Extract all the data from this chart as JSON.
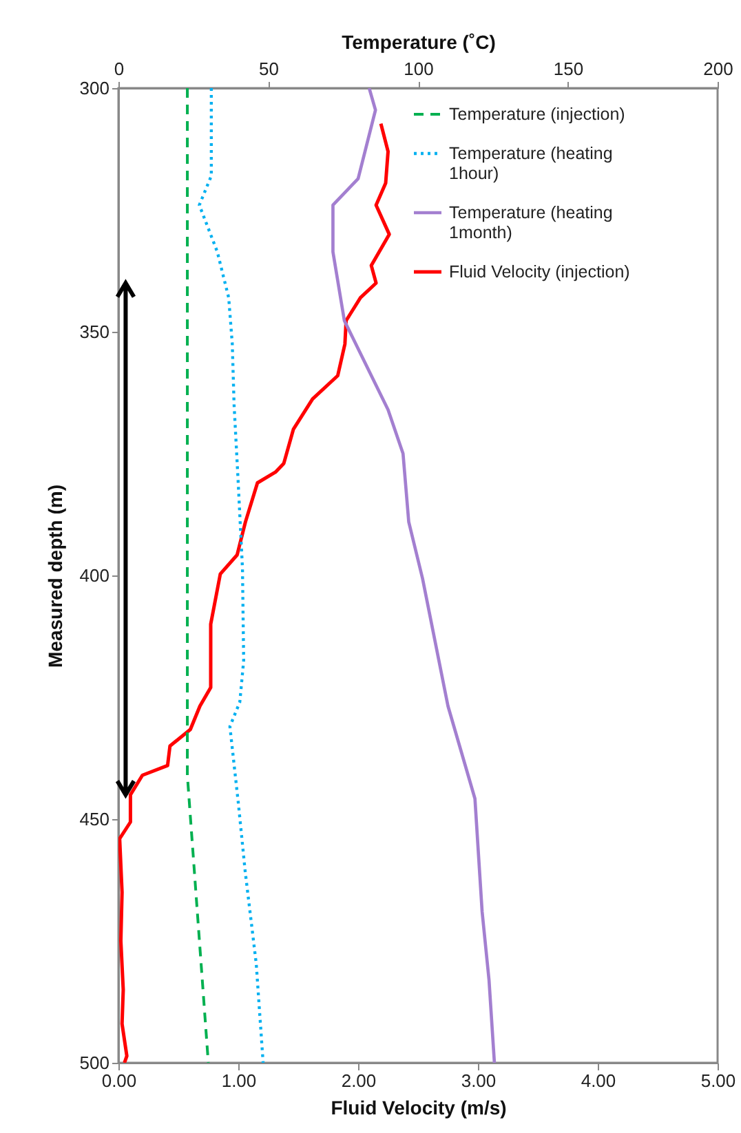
{
  "chart_data": {
    "type": "line",
    "xlabel": "Fluid Velocity (m/s)",
    "x2label": "Temperature (˚C)",
    "ylabel": "Measured depth (m)",
    "xlim": [
      0,
      5
    ],
    "xticks": [
      {
        "value": 0,
        "label": "0.00"
      },
      {
        "value": 1,
        "label": "1.00"
      },
      {
        "value": 2,
        "label": "2.00"
      },
      {
        "value": 3,
        "label": "3.00"
      },
      {
        "value": 4,
        "label": "4.00"
      },
      {
        "value": 5,
        "label": "5.00"
      }
    ],
    "x2lim": [
      0,
      200
    ],
    "x2ticks": [
      0,
      50,
      100,
      150,
      200
    ],
    "ylim": [
      500,
      300
    ],
    "yticks": [
      300,
      350,
      400,
      450,
      500
    ],
    "grid": false,
    "legend": "top right",
    "series": [
      {
        "name": "Temperature (injection)",
        "color": "#00b050",
        "axis": "x2",
        "line_style": "dashed",
        "x": [
          23,
          23,
          30
        ],
        "values": [
          300,
          441,
          500
        ]
      },
      {
        "name": "Temperature (heating 1hour)",
        "color": "#00b0f0",
        "axis": "x2",
        "line_style": "dotted",
        "x": [
          31,
          31,
          27,
          33,
          36.8,
          38,
          38.6,
          39.9,
          41.4,
          41.8,
          40.5,
          37.2,
          40,
          42.3,
          46,
          48.3
        ],
        "values": [
          300,
          318,
          324,
          333.6,
          343,
          352.5,
          365,
          380,
          398.6,
          417.5,
          426,
          431,
          446.6,
          460.7,
          479.7,
          500
        ]
      },
      {
        "name": "Temperature (heating 1month)",
        "color": "#a37fd0",
        "axis": "x2",
        "line_style": "solid",
        "x": [
          83.7,
          85.8,
          80,
          71.6,
          71.6,
          75.4,
          90,
          95,
          96.9,
          101.5,
          110,
          119,
          121.4,
          123.7,
          125.5
        ],
        "values": [
          300,
          304.5,
          318.6,
          324,
          333.6,
          347.7,
          366,
          375,
          389,
          400.6,
          426.8,
          445.8,
          469,
          483,
          500
        ]
      },
      {
        "name": "Fluid Velocity (injection)",
        "color": "#ff0000",
        "line_style": "solid",
        "x": [
          2.19,
          2.25,
          2.23,
          2.15,
          2.26,
          2.11,
          2.15,
          2.02,
          1.9,
          1.89,
          1.83,
          1.62,
          1.46,
          1.38,
          1.31,
          1.16,
          1.06,
          0.99,
          0.85,
          0.77,
          0.77,
          0.68,
          0.6,
          0.43,
          0.41,
          0.2,
          0.1,
          0.1,
          0.01,
          0.03,
          0.02,
          0.04,
          0.03,
          0.07,
          0.05
        ],
        "values": [
          307.3,
          313,
          319.5,
          324,
          330,
          336.4,
          340,
          343,
          347.7,
          352.5,
          359,
          363.8,
          370,
          377,
          378.8,
          381,
          389,
          395.8,
          399.7,
          410,
          423,
          426.8,
          431.6,
          435,
          439,
          441,
          445,
          450.6,
          454,
          465,
          475,
          485,
          492,
          498.6,
          500
        ]
      }
    ]
  }
}
